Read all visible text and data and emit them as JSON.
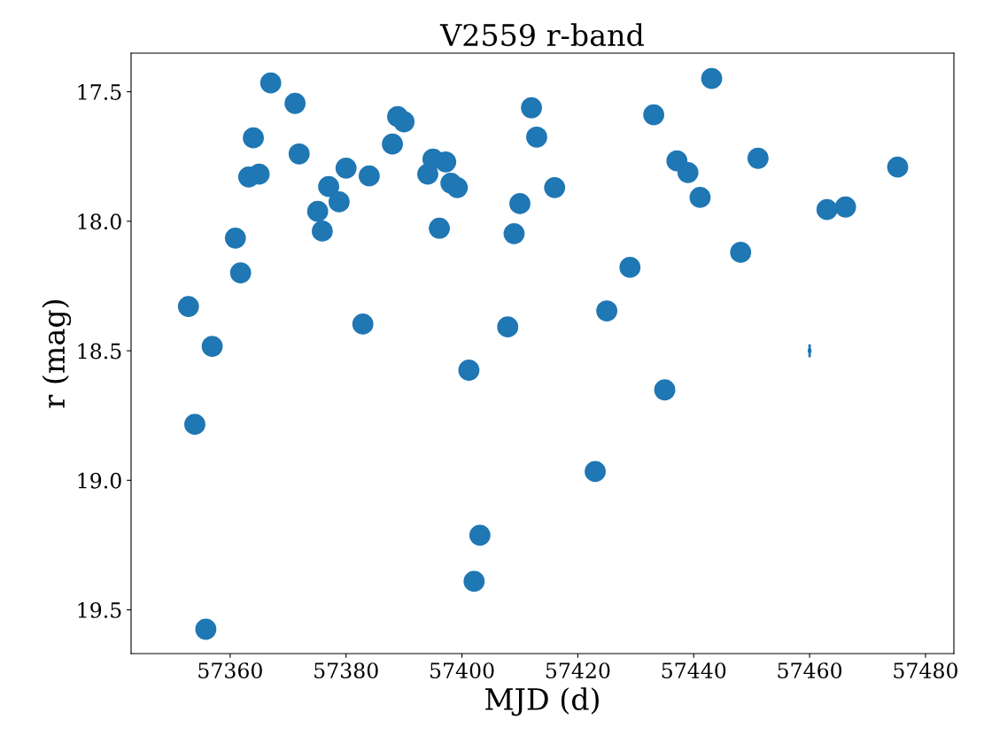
{
  "chart_data": {
    "type": "scatter",
    "title": "V2559 r-band",
    "xlabel": "MJD (d)",
    "ylabel": "r (mag)",
    "xlim": [
      57342.9,
      57484.9
    ],
    "ylim": [
      19.669,
      17.351
    ],
    "xticks": [
      57360,
      57380,
      57400,
      57420,
      57440,
      57460,
      57480
    ],
    "yticks": [
      17.5,
      {
        "value": 18,
        "label": "18.0"
      },
      18.5,
      {
        "value": 19,
        "label": "19.0"
      },
      19.5
    ],
    "grid": false,
    "legend": false,
    "series": [
      {
        "color": "#1f77b4",
        "marker": "circle",
        "x": [
          57352.8,
          57353.9,
          57356.9,
          57355.8,
          57360.9,
          57361.8,
          57363.2,
          57364.0,
          57365.0,
          57367.0,
          57371.2,
          57371.9,
          57375.1,
          57375.9,
          57377.0,
          57378.8,
          57380.0,
          57382.9,
          57384.0,
          57388.0,
          57388.9,
          57390.0,
          57394.1,
          57395.0,
          57396.1,
          57397.2,
          57398.1,
          57399.2,
          57401.2,
          57402.1,
          57403.1,
          57407.9,
          57409.0,
          57410.0,
          57412.0,
          57412.9,
          57416.0,
          57423.0,
          57425.0,
          57429.0,
          57433.1,
          57435.0,
          57437.1,
          57439.0,
          57441.1,
          57443.1,
          57448.1,
          57451.1,
          57463.0,
          57466.2,
          57475.2
        ],
        "values": [
          18.329,
          18.784,
          18.483,
          19.575,
          18.065,
          18.199,
          17.829,
          17.678,
          17.818,
          17.466,
          17.545,
          17.74,
          17.962,
          18.038,
          17.866,
          17.925,
          17.795,
          18.397,
          17.825,
          17.702,
          17.596,
          17.616,
          17.818,
          17.76,
          18.027,
          17.771,
          17.853,
          17.87,
          18.575,
          19.39,
          19.212,
          18.408,
          18.048,
          17.932,
          17.562,
          17.675,
          17.87,
          18.966,
          18.346,
          18.178,
          17.589,
          18.651,
          17.767,
          17.812,
          17.908,
          17.449,
          18.12,
          17.757,
          17.955,
          17.945,
          17.791
        ]
      },
      {
        "color": "#1f77b4",
        "marker": "square",
        "x": [
          57460
        ],
        "values": [
          18.5
        ],
        "errors": [
          0.025
        ]
      }
    ]
  }
}
